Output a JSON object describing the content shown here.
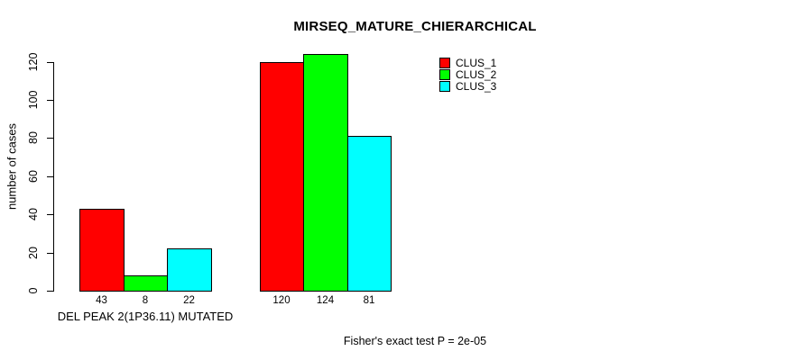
{
  "chart_data": {
    "type": "bar",
    "title": "MIRSEQ_MATURE_CHIERARCHICAL",
    "ylabel": "number of cases",
    "xlabel": "",
    "ylim": [
      0,
      124
    ],
    "yticks": [
      0,
      20,
      40,
      60,
      80,
      100,
      120
    ],
    "grid": false,
    "legend_position": "top-right",
    "categories": [
      "DEL PEAK 2(1P36.11) MUTATED",
      ""
    ],
    "series": [
      {
        "name": "CLUS_1",
        "color": "#FF0000",
        "values": [
          43,
          120
        ]
      },
      {
        "name": "CLUS_2",
        "color": "#00FF00",
        "values": [
          8,
          124
        ]
      },
      {
        "name": "CLUS_3",
        "color": "#00FFFF",
        "values": [
          22,
          81
        ]
      }
    ],
    "annotation": "Fisher's exact test P = 2e-05"
  },
  "colors": {
    "background": "#FFFFFF",
    "axis": "#000000",
    "text": "#000000",
    "bar_border": "#000000"
  }
}
